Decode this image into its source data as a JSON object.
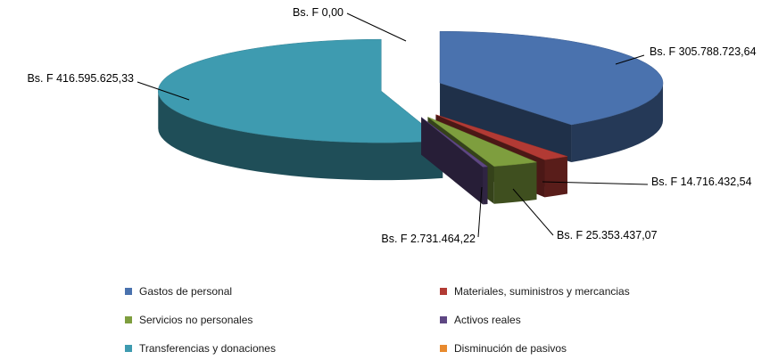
{
  "chart_data": {
    "type": "pie",
    "style": "3d-exploded",
    "currency_prefix": "Bs. F",
    "slices": [
      {
        "name": "Gastos de personal",
        "value": 305788723.64,
        "label": "Bs. F 305.788.723,64",
        "color": "#4A72AE"
      },
      {
        "name": "Materiales, suministros y mercancias",
        "value": 14716432.54,
        "label": "Bs. F 14.716.432,54",
        "color": "#B23A34"
      },
      {
        "name": "Servicios no personales",
        "value": 25353437.07,
        "label": "Bs. F 25.353.437,07",
        "color": "#7E9E3E"
      },
      {
        "name": "Activos reales",
        "value": 2731464.22,
        "label": "Bs. F 2.731.464,22",
        "color": "#5E4783"
      },
      {
        "name": "Transferencias y donaciones",
        "value": 416595625.33,
        "label": "Bs. F 416.595.625,33",
        "color": "#3E9BB0"
      },
      {
        "name": "Disminución de pasivos",
        "value": 0.0,
        "label": "Bs. F 0,00",
        "color": "#E88A2E"
      }
    ],
    "legend_position": "bottom"
  }
}
